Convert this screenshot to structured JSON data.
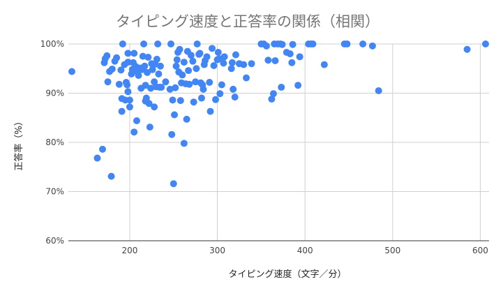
{
  "chart_data": {
    "type": "scatter",
    "title": "タイピング速度と正答率の関係（相関）",
    "xlabel": "タイピング速度（文字／分）",
    "ylabel": "正答率（%）",
    "xlim": [
      130,
      610
    ],
    "ylim": [
      60,
      100
    ],
    "xticks": [
      200,
      300,
      400,
      500,
      600
    ],
    "xtick_labels": [
      "200",
      "300",
      "400",
      "500",
      "600"
    ],
    "yticks": [
      60,
      70,
      80,
      90,
      100
    ],
    "ytick_labels": [
      "60%",
      "70%",
      "80%",
      "90%",
      "100%"
    ],
    "grid": true,
    "legend": "none",
    "colors": {
      "point": "#4285f4",
      "grid": "#cfcfcf",
      "title": "#757575"
    },
    "series": [
      {
        "points": [
          [
            134,
            94.4
          ],
          [
            163,
            76.8
          ],
          [
            169,
            78.6
          ],
          [
            171,
            96.2
          ],
          [
            172,
            97.0
          ],
          [
            174,
            97.6
          ],
          [
            175,
            92.3
          ],
          [
            177,
            94.4
          ],
          [
            179,
            73.1
          ],
          [
            180,
            94.9
          ],
          [
            183,
            96.5
          ],
          [
            185,
            97.2
          ],
          [
            188,
            91.8
          ],
          [
            190,
            94.7
          ],
          [
            191,
            88.9
          ],
          [
            191,
            86.3
          ],
          [
            192,
            100.0
          ],
          [
            194,
            95.8
          ],
          [
            195,
            88.6
          ],
          [
            196,
            92.2
          ],
          [
            197,
            91.7
          ],
          [
            198,
            90.3
          ],
          [
            198,
            96.3
          ],
          [
            198,
            98.1
          ],
          [
            200,
            87.2
          ],
          [
            200,
            88.6
          ],
          [
            202,
            93.9
          ],
          [
            203,
            94.8
          ],
          [
            204,
            96.2
          ],
          [
            205,
            98.1
          ],
          [
            205,
            82.1
          ],
          [
            207,
            95.4
          ],
          [
            208,
            84.4
          ],
          [
            209,
            94.3
          ],
          [
            210,
            93.6
          ],
          [
            212,
            95.1
          ],
          [
            213,
            91.0
          ],
          [
            214,
            94.8
          ],
          [
            215,
            97.5
          ],
          [
            216,
            100.0
          ],
          [
            217,
            95.5
          ],
          [
            218,
            91.6
          ],
          [
            218,
            88.4
          ],
          [
            219,
            89.0
          ],
          [
            220,
            94.2
          ],
          [
            221,
            97.3
          ],
          [
            222,
            87.9
          ],
          [
            223,
            83.1
          ],
          [
            224,
            91.0
          ],
          [
            225,
            96.0
          ],
          [
            226,
            94.8
          ],
          [
            228,
            87.2
          ],
          [
            228,
            92.3
          ],
          [
            229,
            95.9
          ],
          [
            230,
            91.3
          ],
          [
            231,
            96.9
          ],
          [
            232,
            100.0
          ],
          [
            233,
            93.9
          ],
          [
            234,
            91.2
          ],
          [
            235,
            95.5
          ],
          [
            236,
            91.2
          ],
          [
            241,
            92.3
          ],
          [
            246,
            90.8
          ],
          [
            247,
            100.0
          ],
          [
            248,
            81.6
          ],
          [
            249,
            88.6
          ],
          [
            250,
            71.6
          ],
          [
            251,
            85.6
          ],
          [
            252,
            91.1
          ],
          [
            253,
            95.5
          ],
          [
            254,
            96.8
          ],
          [
            255,
            98.3
          ],
          [
            256,
            94.3
          ],
          [
            257,
            98.9
          ],
          [
            258,
            88.5
          ],
          [
            259,
            92.1
          ],
          [
            260,
            93.7
          ],
          [
            262,
            79.8
          ],
          [
            262,
            96.3
          ],
          [
            264,
            91.9
          ],
          [
            265,
            84.7
          ],
          [
            266,
            98.5
          ],
          [
            267,
            94.6
          ],
          [
            268,
            91.8
          ],
          [
            270,
            97.7
          ],
          [
            272,
            96.5
          ],
          [
            273,
            88.2
          ],
          [
            275,
            92.3
          ],
          [
            276,
            95.0
          ],
          [
            277,
            100.0
          ],
          [
            279,
            97.9
          ],
          [
            280,
            98.1
          ],
          [
            281,
            92.1
          ],
          [
            282,
            89.0
          ],
          [
            283,
            91.7
          ],
          [
            284,
            90.8
          ],
          [
            285,
            95.8
          ],
          [
            286,
            96.6
          ],
          [
            288,
            97.4
          ],
          [
            291,
            92.2
          ],
          [
            292,
            86.3
          ],
          [
            294,
            99.1
          ],
          [
            296,
            95.6
          ],
          [
            298,
            88.7
          ],
          [
            300,
            96.8
          ],
          [
            301,
            98.3
          ],
          [
            302,
            97.0
          ],
          [
            303,
            89.9
          ],
          [
            305,
            91.7
          ],
          [
            307,
            96.1
          ],
          [
            308,
            97.4
          ],
          [
            316,
            95.0
          ],
          [
            317,
            96.2
          ],
          [
            318,
            90.8
          ],
          [
            320,
            89.2
          ],
          [
            321,
            97.8
          ],
          [
            325,
            96.0
          ],
          [
            330,
            95.8
          ],
          [
            333,
            93.1
          ],
          [
            339,
            96.0
          ],
          [
            350,
            100.0
          ],
          [
            353,
            100.0
          ],
          [
            356,
            99.6
          ],
          [
            358,
            96.7
          ],
          [
            362,
            88.8
          ],
          [
            364,
            89.9
          ],
          [
            365,
            100.0
          ],
          [
            366,
            96.6
          ],
          [
            369,
            100.0
          ],
          [
            372,
            100.0
          ],
          [
            373,
            91.2
          ],
          [
            374,
            99.9
          ],
          [
            379,
            98.3
          ],
          [
            383,
            98.0
          ],
          [
            385,
            96.2
          ],
          [
            386,
            99.9
          ],
          [
            392,
            91.6
          ],
          [
            394,
            97.4
          ],
          [
            404,
            100.0
          ],
          [
            407,
            100.0
          ],
          [
            409,
            100.0
          ],
          [
            422,
            95.8
          ],
          [
            445,
            100.0
          ],
          [
            448,
            100.0
          ],
          [
            466,
            100.0
          ],
          [
            477,
            99.6
          ],
          [
            484,
            90.5
          ],
          [
            585,
            98.9
          ],
          [
            606,
            100.0
          ]
        ]
      }
    ]
  }
}
